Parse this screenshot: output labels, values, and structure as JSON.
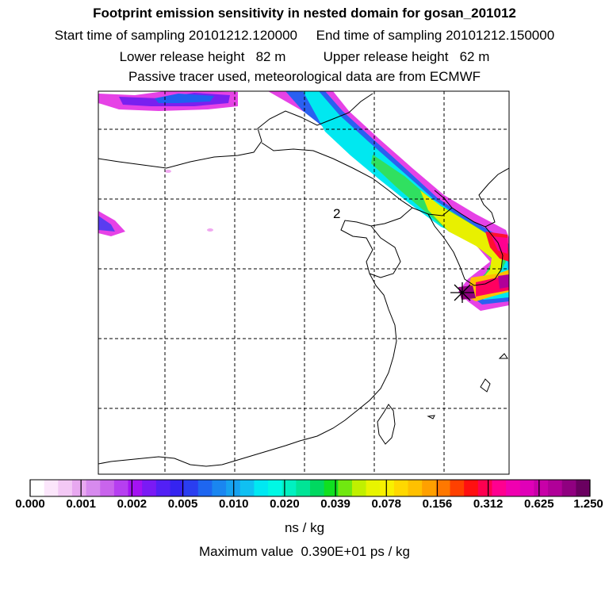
{
  "header": {
    "title": "Footprint emission sensitivity in nested domain for gosan_201012",
    "line2": "Start time of sampling 20101212.120000     End time of sampling 20101212.150000",
    "line3": "Lower release height   82 m          Upper release height   62 m",
    "line4": "Passive tracer used, meteorological data are from ECMWF"
  },
  "map": {
    "region_marker_label": "2",
    "receptor": "receptor-star-icon"
  },
  "colorbar": {
    "labels": [
      "0.000",
      "0.001",
      "0.002",
      "0.005",
      "0.010",
      "0.020",
      "0.039",
      "0.078",
      "0.156",
      "0.312",
      "0.625",
      "1.250"
    ],
    "colors": [
      "#ffffff",
      "#fbe6fb",
      "#f3c8f5",
      "#e8a8f0",
      "#d78aee",
      "#c964ec",
      "#b63ff0",
      "#a412f2",
      "#7a1af5",
      "#5320f5",
      "#3524f0",
      "#2a3ef0",
      "#1e66f0",
      "#1a86f0",
      "#16a2f0",
      "#10c0f2",
      "#00e8f2",
      "#00f8e4",
      "#00f0c0",
      "#00e496",
      "#00d860",
      "#10e020",
      "#70e810",
      "#c0f000",
      "#e8f400",
      "#f8f000",
      "#ffd800",
      "#ffc000",
      "#ffa000",
      "#ff7800",
      "#ff4000",
      "#ff1010",
      "#ff0050",
      "#ff0090",
      "#f000b0",
      "#e000b8",
      "#c800a8",
      "#b00098",
      "#900080",
      "#6a0060"
    ],
    "unit": "ns / kg"
  },
  "footer": {
    "max_value": "Maximum value  0.390E+01 ps / kg"
  }
}
